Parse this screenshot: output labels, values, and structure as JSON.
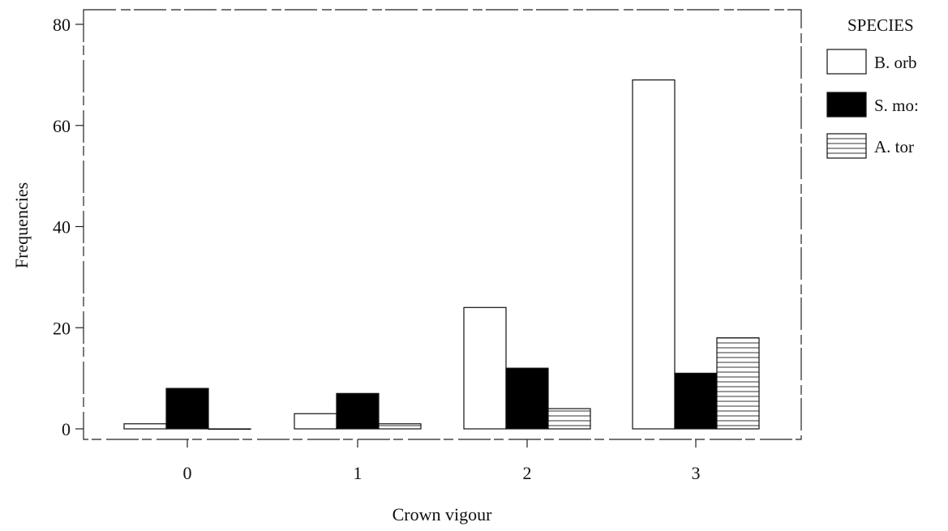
{
  "chart_data": {
    "type": "bar",
    "title": "",
    "xlabel": "Crown vigour",
    "ylabel": "Frequencies",
    "categories": [
      "0",
      "1",
      "2",
      "3"
    ],
    "ylim": [
      0,
      80
    ],
    "yticks": [
      "0",
      "20",
      "40",
      "60",
      "80"
    ],
    "grid": false,
    "legend_title": "SPECIES",
    "legend_position": "right",
    "series": [
      {
        "name": "B. orb",
        "values": [
          1,
          3,
          24,
          69
        ],
        "fill": "#ffffff",
        "pattern": "none"
      },
      {
        "name": "S. mo:",
        "values": [
          8,
          7,
          12,
          11
        ],
        "fill": "#000000",
        "pattern": "solid"
      },
      {
        "name": "A. tor",
        "values": [
          0,
          1,
          4,
          18
        ],
        "fill": "#ffffff",
        "pattern": "hatch"
      }
    ]
  }
}
